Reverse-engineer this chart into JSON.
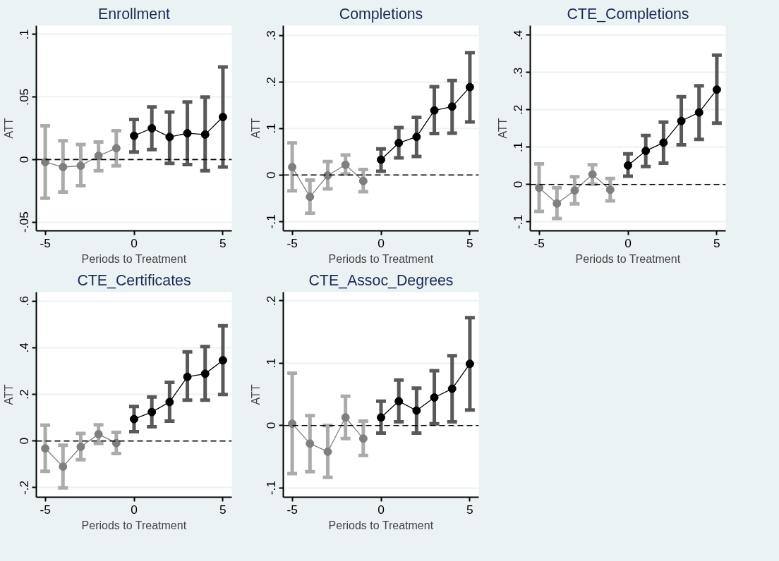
{
  "chart_data": [
    {
      "type": "line",
      "title": "Enrollment",
      "xlabel": "Periods to Treatment",
      "ylabel": "ATT",
      "xlim": [
        -5.5,
        5.5
      ],
      "xticks": [
        -5,
        0,
        5
      ],
      "ylim": [
        -0.057,
        0.107
      ],
      "yticks": [
        {
          "value": -0.05,
          "label": "-.05"
        },
        0,
        {
          "value": 0.05,
          "label": ".05"
        },
        {
          "value": 0.1,
          "label": ".1"
        }
      ],
      "grid": "y",
      "marker": "circle",
      "line_style": "solid",
      "ref_lines": [
        {
          "axis": "y",
          "value": 0,
          "label": null,
          "color": "#000000",
          "line_style": "dashed"
        }
      ],
      "series": [
        {
          "color": "#7f7f7f",
          "x": [
            -5,
            -4,
            -3,
            -2,
            -1
          ],
          "values": [
            -0.002,
            -0.006,
            -0.005,
            0.003,
            0.009
          ],
          "errors": [
            [
              -0.031,
              0.027
            ],
            [
              -0.026,
              0.015
            ],
            [
              -0.021,
              0.012
            ],
            [
              -0.009,
              0.014
            ],
            [
              -0.005,
              0.023
            ]
          ]
        },
        {
          "color": "#000000",
          "x": [
            0,
            1,
            2,
            3,
            4,
            5
          ],
          "values": [
            0.019,
            0.025,
            0.018,
            0.021,
            0.02,
            0.034
          ],
          "errors": [
            [
              0.006,
              0.032
            ],
            [
              0.008,
              0.042
            ],
            [
              -0.003,
              0.038
            ],
            [
              -0.004,
              0.046
            ],
            [
              -0.009,
              0.05
            ],
            [
              -0.006,
              0.074
            ]
          ]
        }
      ]
    },
    {
      "type": "line",
      "title": "Completions",
      "xlabel": "Periods to Treatment",
      "ylabel": "ATT",
      "xlim": [
        -5.5,
        5.5
      ],
      "xticks": [
        -5,
        0,
        5
      ],
      "ylim": [
        -0.12,
        0.321
      ],
      "yticks": [
        {
          "value": -0.1,
          "label": "-.1"
        },
        0,
        {
          "value": 0.1,
          "label": ".1"
        },
        {
          "value": 0.2,
          "label": ".2"
        },
        {
          "value": 0.3,
          "label": ".3"
        }
      ],
      "grid": "y",
      "marker": "circle",
      "line_style": "solid",
      "ref_lines": [
        {
          "axis": "y",
          "value": 0,
          "label": null,
          "color": "#000000",
          "line_style": "dashed"
        }
      ],
      "series": [
        {
          "color": "#7f7f7f",
          "x": [
            -5,
            -4,
            -3,
            -2,
            -1
          ],
          "values": [
            0.017,
            -0.047,
            -0.001,
            0.022,
            -0.013
          ],
          "errors": [
            [
              -0.034,
              0.069
            ],
            [
              -0.082,
              -0.011
            ],
            [
              -0.03,
              0.029
            ],
            [
              0.002,
              0.043
            ],
            [
              -0.036,
              0.012
            ]
          ]
        },
        {
          "color": "#000000",
          "x": [
            0,
            1,
            2,
            3,
            4,
            5
          ],
          "values": [
            0.033,
            0.069,
            0.082,
            0.139,
            0.147,
            0.189
          ],
          "errors": [
            [
              0.008,
              0.056
            ],
            [
              0.037,
              0.102
            ],
            [
              0.04,
              0.124
            ],
            [
              0.089,
              0.19
            ],
            [
              0.09,
              0.203
            ],
            [
              0.114,
              0.263
            ]
          ]
        }
      ]
    },
    {
      "type": "line",
      "title": "CTE_Completions",
      "xlabel": "Periods to Treatment",
      "ylabel": "ATT",
      "xlim": [
        -5.5,
        5.5
      ],
      "xticks": [
        -5,
        0,
        5
      ],
      "ylim": [
        -0.124,
        0.425
      ],
      "yticks": [
        {
          "value": -0.1,
          "label": "-.1"
        },
        0,
        {
          "value": 0.1,
          "label": ".1"
        },
        {
          "value": 0.2,
          "label": ".2"
        },
        {
          "value": 0.3,
          "label": ".3"
        },
        {
          "value": 0.4,
          "label": ".4"
        }
      ],
      "grid": "y",
      "marker": "circle",
      "line_style": "solid",
      "ref_lines": [
        {
          "axis": "y",
          "value": 0,
          "label": null,
          "color": "#000000",
          "line_style": "dashed"
        }
      ],
      "series": [
        {
          "color": "#7f7f7f",
          "x": [
            -5,
            -4,
            -3,
            -2,
            -1
          ],
          "values": [
            -0.009,
            -0.051,
            -0.016,
            0.027,
            -0.014
          ],
          "errors": [
            [
              -0.072,
              0.055
            ],
            [
              -0.091,
              -0.009
            ],
            [
              -0.052,
              0.021
            ],
            [
              0.001,
              0.053
            ],
            [
              -0.044,
              0.016
            ]
          ]
        },
        {
          "color": "#000000",
          "x": [
            0,
            1,
            2,
            3,
            4,
            5
          ],
          "values": [
            0.051,
            0.09,
            0.112,
            0.17,
            0.193,
            0.254
          ],
          "errors": [
            [
              0.022,
              0.082
            ],
            [
              0.048,
              0.131
            ],
            [
              0.057,
              0.167
            ],
            [
              0.106,
              0.235
            ],
            [
              0.121,
              0.264
            ],
            [
              0.164,
              0.346
            ]
          ]
        }
      ]
    },
    {
      "type": "line",
      "title": "CTE_Certificates",
      "xlabel": "Periods to Treatment",
      "ylabel": "ATT",
      "xlim": [
        -5.5,
        5.5
      ],
      "xticks": [
        -5,
        0,
        5
      ],
      "ylim": [
        -0.241,
        0.638
      ],
      "yticks": [
        {
          "value": -0.2,
          "label": "-.2"
        },
        0,
        {
          "value": 0.2,
          "label": ".2"
        },
        {
          "value": 0.4,
          "label": ".4"
        },
        {
          "value": 0.6,
          "label": ".6"
        }
      ],
      "grid": "y",
      "marker": "circle",
      "line_style": "solid",
      "ref_lines": [
        {
          "axis": "y",
          "value": 0,
          "label": null,
          "color": "#000000",
          "line_style": "dashed"
        }
      ],
      "series": [
        {
          "color": "#7f7f7f",
          "x": [
            -5,
            -4,
            -3,
            -2,
            -1
          ],
          "values": [
            -0.032,
            -0.11,
            -0.025,
            0.029,
            -0.009
          ],
          "errors": [
            [
              -0.13,
              0.068
            ],
            [
              -0.201,
              -0.018
            ],
            [
              -0.08,
              0.032
            ],
            [
              -0.011,
              0.069
            ],
            [
              -0.054,
              0.037
            ]
          ]
        },
        {
          "color": "#000000",
          "x": [
            0,
            1,
            2,
            3,
            4,
            5
          ],
          "values": [
            0.094,
            0.124,
            0.167,
            0.275,
            0.288,
            0.346
          ],
          "errors": [
            [
              0.04,
              0.148
            ],
            [
              0.061,
              0.189
            ],
            [
              0.085,
              0.251
            ],
            [
              0.175,
              0.382
            ],
            [
              0.175,
              0.405
            ],
            [
              0.199,
              0.494
            ]
          ]
        }
      ]
    },
    {
      "type": "line",
      "title": "CTE_Assoc_Degrees",
      "xlabel": "Periods to Treatment",
      "ylabel": "ATT",
      "xlim": [
        -5.5,
        5.5
      ],
      "xticks": [
        -5,
        0,
        5
      ],
      "ylim": [
        -0.115,
        0.214
      ],
      "yticks": [
        {
          "value": -0.1,
          "label": "-.1"
        },
        0,
        {
          "value": 0.1,
          "label": ".1"
        },
        {
          "value": 0.2,
          "label": ".2"
        }
      ],
      "grid": "y",
      "marker": "circle",
      "line_style": "solid",
      "ref_lines": [
        {
          "axis": "y",
          "value": 0,
          "label": null,
          "color": "#000000",
          "line_style": "dashed"
        }
      ],
      "series": [
        {
          "color": "#7f7f7f",
          "x": [
            -5,
            -4,
            -3,
            -2,
            -1
          ],
          "values": [
            0.003,
            -0.029,
            -0.042,
            0.013,
            -0.021
          ],
          "errors": [
            [
              -0.077,
              0.084
            ],
            [
              -0.074,
              0.016
            ],
            [
              -0.083,
              0.0
            ],
            [
              -0.021,
              0.047
            ],
            [
              -0.048,
              0.007
            ]
          ]
        },
        {
          "color": "#000000",
          "x": [
            0,
            1,
            2,
            3,
            4,
            5
          ],
          "values": [
            0.013,
            0.039,
            0.024,
            0.045,
            0.059,
            0.099
          ],
          "errors": [
            [
              -0.012,
              0.039
            ],
            [
              0.006,
              0.073
            ],
            [
              -0.012,
              0.06
            ],
            [
              0.003,
              0.088
            ],
            [
              0.006,
              0.112
            ],
            [
              0.025,
              0.173
            ]
          ]
        }
      ]
    }
  ]
}
